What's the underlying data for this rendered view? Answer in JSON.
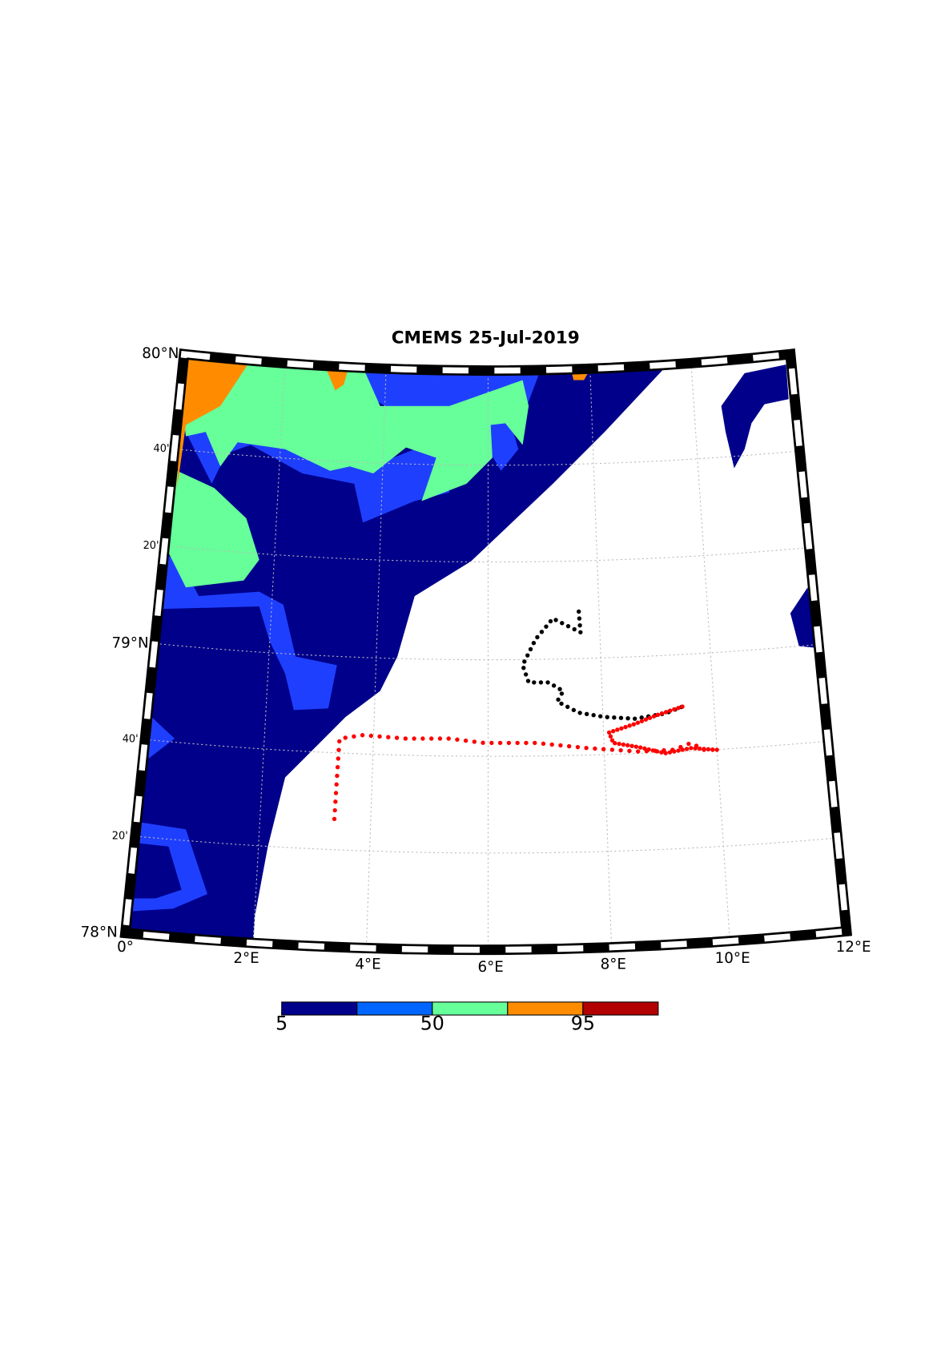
{
  "title": "CMEMS 25-Jul-2019",
  "lat_labels": [
    "80°N",
    "40'",
    "20'",
    "79°N",
    "40'",
    "20'",
    "78°N"
  ],
  "lon_labels": [
    "0°",
    "2°E",
    "4°E",
    "6°E",
    "8°E",
    "10°E",
    "12°E"
  ],
  "chart_data": {
    "type": "colorbar",
    "bins": [
      5,
      27.5,
      50,
      72.5,
      95,
      117.5
    ],
    "colors": [
      "#00008b",
      "#0066ff",
      "#66ff99",
      "#ff8c00",
      "#b30000"
    ],
    "xlim": [
      5,
      117.5
    ],
    "xticks": [
      5,
      50,
      95
    ]
  }
}
